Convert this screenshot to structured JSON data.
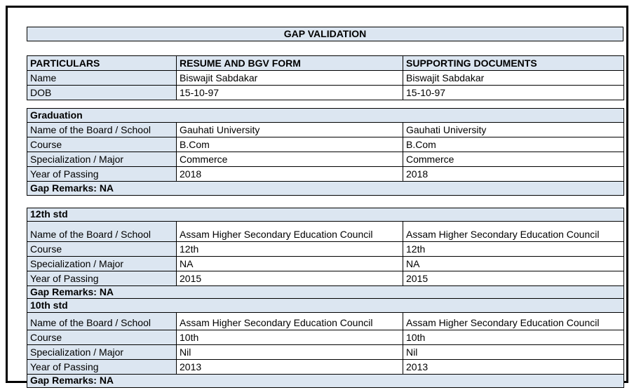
{
  "page": {
    "title": "GAP VALIDATION"
  },
  "colors": {
    "header_bg": "#dce6f1",
    "border": "#000000",
    "page_bg": "#ffffff"
  },
  "summary_table": {
    "headers": [
      "PARTICULARS",
      "RESUME AND BGV FORM",
      "SUPPORTING DOCUMENTS"
    ],
    "rows": [
      {
        "label": "Name",
        "resume": "Biswajit Sabdakar",
        "supporting": "Biswajit Sabdakar"
      },
      {
        "label": "DOB",
        "resume": "15-10-97",
        "supporting": "15-10-97"
      }
    ]
  },
  "sections": [
    {
      "title": "Graduation",
      "rows": [
        {
          "label": "Name of the Board / School",
          "resume": "Gauhati University",
          "supporting": "Gauhati University"
        },
        {
          "label": "Course",
          "resume": "B.Com",
          "supporting": "B.Com"
        },
        {
          "label": "Specialization / Major",
          "resume": "Commerce",
          "supporting": "Commerce"
        },
        {
          "label": "Year of Passing",
          "resume": "2018",
          "supporting": "2018"
        }
      ],
      "gap_remarks": "Gap Remarks: NA"
    },
    {
      "title": "12th std",
      "rows": [
        {
          "label": "Name of the Board / School",
          "resume": "Assam Higher Secondary Education Council",
          "supporting": "Assam Higher Secondary Education Council"
        },
        {
          "label": "Course",
          "resume": "12th",
          "supporting": "12th"
        },
        {
          "label": "Specialization / Major",
          "resume": "NA",
          "supporting": "NA"
        },
        {
          "label": "Year of Passing",
          "resume": "2015",
          "supporting": "2015"
        }
      ],
      "gap_remarks": "Gap Remarks: NA"
    },
    {
      "title": "10th std",
      "rows": [
        {
          "label": "Name of the Board / School",
          "resume": "Assam Higher Secondary Education Council",
          "supporting": "Assam Higher Secondary Education Council"
        },
        {
          "label": "Course",
          "resume": "10th",
          "supporting": "10th"
        },
        {
          "label": "Specialization / Major",
          "resume": "Nil",
          "supporting": "Nil"
        },
        {
          "label": "Year of Passing",
          "resume": "2013",
          "supporting": "2013"
        }
      ],
      "gap_remarks": "Gap Remarks: NA"
    }
  ]
}
